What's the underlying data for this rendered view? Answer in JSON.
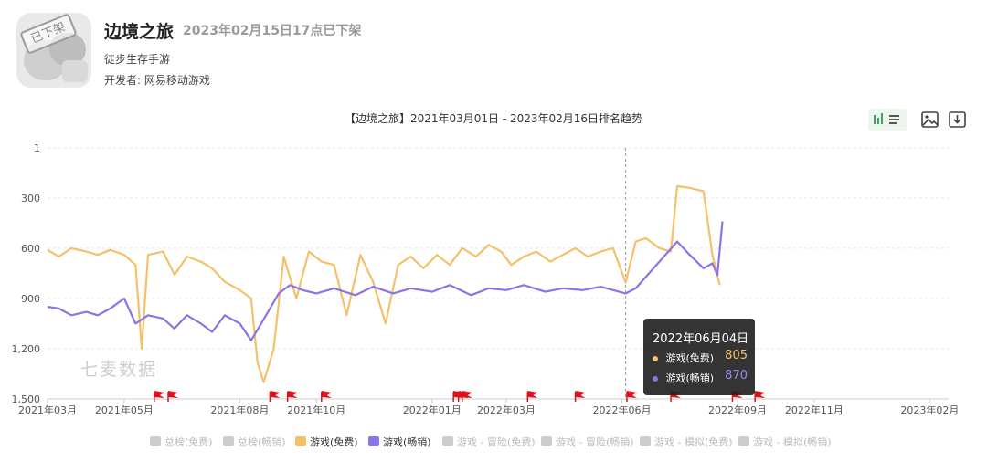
{
  "app": {
    "name": "边境之旅",
    "status": "2023年02月15日17点已下架",
    "stamp": "已下架",
    "subtitle": "徒步生存手游",
    "developer": "开发者: 网易移动游戏"
  },
  "colors": {
    "free": "#f5c06a",
    "grossing": "#8b74e3",
    "flag": "#d9121b",
    "grid": "#e6e6e6",
    "axis": "#cccccc"
  },
  "watermark": "七麦数据",
  "tooltip": {
    "date": "2022年06月04日",
    "rows": [
      {
        "label": "游戏(免费)",
        "value": "805"
      },
      {
        "label": "游戏(畅销)",
        "value": "870"
      }
    ]
  },
  "toolbar": {
    "icons": [
      "chart-type-icon",
      "image-export-icon",
      "download-icon"
    ]
  },
  "legend": [
    {
      "label": "总榜(免费)",
      "active": false
    },
    {
      "label": "总榜(畅销)",
      "active": false
    },
    {
      "label": "游戏(免费)",
      "active": true,
      "series": "free"
    },
    {
      "label": "游戏(畅销)",
      "active": true,
      "series": "grossing"
    },
    {
      "label": "游戏 - 冒险(免费)",
      "active": false
    },
    {
      "label": "游戏 - 冒险(畅销)",
      "active": false
    },
    {
      "label": "游戏 - 模拟(免费)",
      "active": false
    },
    {
      "label": "游戏 - 模拟(畅销)",
      "active": false
    }
  ],
  "chart_data": {
    "type": "line",
    "title": "【边境之旅】2021年03月01日 - 2023年02月16日排名趋势",
    "y_inverted": true,
    "ylim": [
      1,
      1500
    ],
    "y_ticks": [
      1,
      300,
      600,
      900,
      1200,
      1500
    ],
    "y_tick_labels": [
      "1",
      "300",
      "600",
      "900",
      "1,200",
      "1,500"
    ],
    "x_range": [
      "2021-03-01",
      "2023-02-16"
    ],
    "x_ticks": [
      "2021-03-01",
      "2021-05-01",
      "2021-08-01",
      "2021-10-01",
      "2022-01-01",
      "2022-03-01",
      "2022-06-01",
      "2022-09-01",
      "2022-11-01",
      "2023-02-01"
    ],
    "x_tick_labels": [
      "2021年03月",
      "2021年05月",
      "2021年08月",
      "2021年10月",
      "2022年01月",
      "2022年03月",
      "2022年06月",
      "2022年09月",
      "2022年11月",
      "2023年02月"
    ],
    "grid": true,
    "highlight_date": "2022-06-04",
    "event_flags": [
      "2021-05-25",
      "2021-06-05",
      "2021-08-25",
      "2021-09-08",
      "2021-10-05",
      "2022-01-18",
      "2022-01-22",
      "2022-01-25",
      "2022-03-18",
      "2022-04-25",
      "2022-06-05",
      "2022-07-10",
      "2022-08-28",
      "2022-09-15"
    ],
    "series": [
      {
        "name": "游戏(免费)",
        "color": "#f5c06a",
        "points": [
          [
            "2021-03-01",
            610
          ],
          [
            "2021-03-10",
            650
          ],
          [
            "2021-03-20",
            600
          ],
          [
            "2021-04-01",
            620
          ],
          [
            "2021-04-10",
            640
          ],
          [
            "2021-04-20",
            610
          ],
          [
            "2021-05-01",
            640
          ],
          [
            "2021-05-10",
            700
          ],
          [
            "2021-05-15",
            1200
          ],
          [
            "2021-05-20",
            640
          ],
          [
            "2021-06-01",
            620
          ],
          [
            "2021-06-10",
            760
          ],
          [
            "2021-06-20",
            650
          ],
          [
            "2021-07-01",
            680
          ],
          [
            "2021-07-10",
            720
          ],
          [
            "2021-07-20",
            800
          ],
          [
            "2021-08-01",
            850
          ],
          [
            "2021-08-10",
            900
          ],
          [
            "2021-08-15",
            1280
          ],
          [
            "2021-08-20",
            1400
          ],
          [
            "2021-08-28",
            1200
          ],
          [
            "2021-09-05",
            650
          ],
          [
            "2021-09-15",
            900
          ],
          [
            "2021-09-25",
            620
          ],
          [
            "2021-10-05",
            680
          ],
          [
            "2021-10-15",
            700
          ],
          [
            "2021-10-25",
            1000
          ],
          [
            "2021-11-05",
            640
          ],
          [
            "2021-11-15",
            800
          ],
          [
            "2021-11-25",
            1050
          ],
          [
            "2021-12-05",
            700
          ],
          [
            "2021-12-15",
            650
          ],
          [
            "2021-12-25",
            720
          ],
          [
            "2022-01-05",
            640
          ],
          [
            "2022-01-15",
            700
          ],
          [
            "2022-01-25",
            600
          ],
          [
            "2022-02-05",
            650
          ],
          [
            "2022-02-15",
            580
          ],
          [
            "2022-02-25",
            620
          ],
          [
            "2022-03-05",
            700
          ],
          [
            "2022-03-15",
            650
          ],
          [
            "2022-03-25",
            620
          ],
          [
            "2022-04-05",
            680
          ],
          [
            "2022-04-15",
            640
          ],
          [
            "2022-04-25",
            600
          ],
          [
            "2022-05-05",
            650
          ],
          [
            "2022-05-15",
            620
          ],
          [
            "2022-05-25",
            600
          ],
          [
            "2022-06-04",
            805
          ],
          [
            "2022-06-12",
            560
          ],
          [
            "2022-06-20",
            540
          ],
          [
            "2022-07-01",
            600
          ],
          [
            "2022-07-10",
            620
          ],
          [
            "2022-07-15",
            230
          ],
          [
            "2022-07-25",
            240
          ],
          [
            "2022-08-05",
            260
          ],
          [
            "2022-08-12",
            640
          ],
          [
            "2022-08-18",
            820
          ]
        ]
      },
      {
        "name": "游戏(畅销)",
        "color": "#8b74e3",
        "points": [
          [
            "2021-03-01",
            950
          ],
          [
            "2021-03-10",
            960
          ],
          [
            "2021-03-20",
            1000
          ],
          [
            "2021-04-01",
            980
          ],
          [
            "2021-04-10",
            1000
          ],
          [
            "2021-04-20",
            960
          ],
          [
            "2021-05-01",
            900
          ],
          [
            "2021-05-10",
            1050
          ],
          [
            "2021-05-20",
            1000
          ],
          [
            "2021-06-01",
            1020
          ],
          [
            "2021-06-10",
            1080
          ],
          [
            "2021-06-20",
            1000
          ],
          [
            "2021-07-01",
            1050
          ],
          [
            "2021-07-10",
            1100
          ],
          [
            "2021-07-20",
            1000
          ],
          [
            "2021-08-01",
            1050
          ],
          [
            "2021-08-10",
            1150
          ],
          [
            "2021-08-18",
            1050
          ],
          [
            "2021-09-01",
            870
          ],
          [
            "2021-09-10",
            820
          ],
          [
            "2021-09-20",
            850
          ],
          [
            "2021-10-01",
            870
          ],
          [
            "2021-10-15",
            840
          ],
          [
            "2021-11-01",
            880
          ],
          [
            "2021-11-15",
            830
          ],
          [
            "2021-12-01",
            870
          ],
          [
            "2021-12-15",
            840
          ],
          [
            "2022-01-01",
            860
          ],
          [
            "2022-01-15",
            820
          ],
          [
            "2022-02-01",
            880
          ],
          [
            "2022-02-15",
            840
          ],
          [
            "2022-03-01",
            850
          ],
          [
            "2022-03-15",
            820
          ],
          [
            "2022-04-01",
            860
          ],
          [
            "2022-04-15",
            840
          ],
          [
            "2022-05-01",
            850
          ],
          [
            "2022-05-15",
            830
          ],
          [
            "2022-06-04",
            870
          ],
          [
            "2022-06-12",
            840
          ],
          [
            "2022-07-15",
            560
          ],
          [
            "2022-07-25",
            640
          ],
          [
            "2022-08-05",
            720
          ],
          [
            "2022-08-12",
            690
          ],
          [
            "2022-08-16",
            760
          ],
          [
            "2022-08-20",
            440
          ]
        ]
      }
    ]
  }
}
